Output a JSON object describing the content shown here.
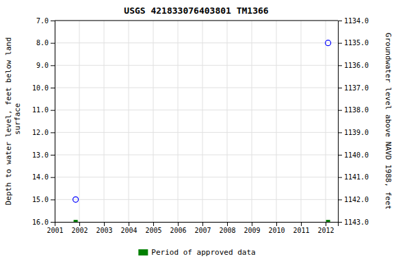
{
  "chart_data": {
    "type": "scatter",
    "title": "USGS 421833076403801 TM1366",
    "ylabel": "Depth to water level, feet below land\n surface",
    "y2label": "Groundwater level above NAVD 1988, feet",
    "xlim": [
      2001,
      2012.5
    ],
    "xticks": [
      2001,
      2002,
      2003,
      2004,
      2005,
      2006,
      2007,
      2008,
      2009,
      2010,
      2011,
      2012
    ],
    "ylim": [
      16.0,
      7.0
    ],
    "yticks": [
      {
        "value": 7.0,
        "label": "7.0"
      },
      {
        "value": 8.0,
        "label": "8.0"
      },
      {
        "value": 9.0,
        "label": "9.0"
      },
      {
        "value": 10.0,
        "label": "10.0"
      },
      {
        "value": 11.0,
        "label": "11.0"
      },
      {
        "value": 12.0,
        "label": "12.0"
      },
      {
        "value": 13.0,
        "label": "13.0"
      },
      {
        "value": 14.0,
        "label": "14.0"
      },
      {
        "value": 15.0,
        "label": "15.0"
      },
      {
        "value": 16.0,
        "label": "16.0"
      }
    ],
    "y2lim": [
      1143.0,
      1134.0
    ],
    "y2ticks": [
      {
        "value": 1143.0,
        "label": "1143.0"
      },
      {
        "value": 1142.0,
        "label": "1142.0"
      },
      {
        "value": 1141.0,
        "label": "1141.0"
      },
      {
        "value": 1140.0,
        "label": "1140.0"
      },
      {
        "value": 1139.0,
        "label": "1139.0"
      },
      {
        "value": 1138.0,
        "label": "1138.0"
      },
      {
        "value": 1137.0,
        "label": "1137.0"
      },
      {
        "value": 1136.0,
        "label": "1136.0"
      },
      {
        "value": 1135.0,
        "label": "1135.0"
      },
      {
        "value": 1134.0,
        "label": "1134.0"
      }
    ],
    "grid": true,
    "legend": "bottom",
    "series": [
      {
        "color": "blue",
        "marker": "open-circle",
        "x": [
          2001.85,
          2012.1
        ],
        "values": [
          15.0,
          8.0
        ]
      },
      {
        "name": "Period of approved data",
        "color": "#008000",
        "marker": "square",
        "x": [
          2001.85,
          2012.1
        ],
        "values": [
          16.0,
          16.0
        ]
      }
    ]
  }
}
